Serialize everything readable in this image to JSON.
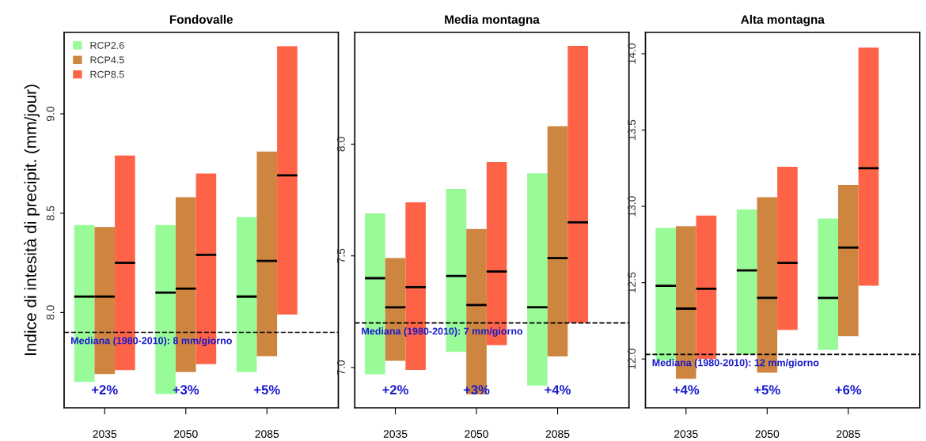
{
  "chart_data": [
    {
      "type": "box",
      "title": "Fondovalle",
      "ylabel": "Indice di intesità di precipit. (mm/jour)",
      "categories": [
        "2035",
        "2050",
        "2085"
      ],
      "ylim": [
        7.52,
        9.41
      ],
      "yticks": [
        {
          "value": 8.0,
          "label": "8.0"
        },
        {
          "value": 8.5,
          "label": "8.5"
        },
        {
          "value": 9.0,
          "label": "9.0"
        }
      ],
      "legend": "top left",
      "series": [
        {
          "name": "RCP2.6",
          "color": "#98fb98",
          "boxes": [
            {
              "low": 7.65,
              "q1": 7.65,
              "median": 8.08,
              "q3": 8.44,
              "high": 8.44
            },
            {
              "low": 7.59,
              "q1": 7.59,
              "median": 8.1,
              "q3": 8.44,
              "high": 8.44
            },
            {
              "low": 7.7,
              "q1": 7.7,
              "median": 8.08,
              "q3": 8.48,
              "high": 8.48
            }
          ]
        },
        {
          "name": "RCP4.5",
          "color": "#cd853f",
          "boxes": [
            {
              "low": 7.69,
              "q1": 7.69,
              "median": 8.08,
              "q3": 8.43,
              "high": 8.43
            },
            {
              "low": 7.7,
              "q1": 7.7,
              "median": 8.12,
              "q3": 8.58,
              "high": 8.58
            },
            {
              "low": 7.78,
              "q1": 7.78,
              "median": 8.26,
              "q3": 8.81,
              "high": 8.81
            }
          ]
        },
        {
          "name": "RCP8.5",
          "color": "#ff6347",
          "boxes": [
            {
              "low": 7.71,
              "q1": 7.71,
              "median": 8.25,
              "q3": 8.79,
              "high": 8.79
            },
            {
              "low": 7.74,
              "q1": 7.74,
              "median": 8.29,
              "q3": 8.7,
              "high": 8.7
            },
            {
              "low": 7.99,
              "q1": 7.99,
              "median": 8.69,
              "q3": 9.34,
              "high": 9.34
            }
          ]
        }
      ],
      "ref_lines": [
        {
          "axis": "y",
          "value": 7.9,
          "label": "Mediana (1980-2010): 8 mm/giorno",
          "color": "#000000",
          "line_style": "dashed"
        }
      ],
      "annotations": [
        "+2%",
        "+3%",
        "+5%"
      ]
    },
    {
      "type": "box",
      "title": "Media montagna",
      "categories": [
        "2035",
        "2050",
        "2085"
      ],
      "ylim": [
        6.82,
        8.5
      ],
      "yticks": [
        {
          "value": 7.0,
          "label": "7.0"
        },
        {
          "value": 7.5,
          "label": "7.5"
        },
        {
          "value": 8.0,
          "label": "8.0"
        }
      ],
      "series": [
        {
          "color": "#98fb98",
          "boxes": [
            {
              "low": 6.97,
              "q1": 6.97,
              "median": 7.4,
              "q3": 7.69,
              "high": 7.69
            },
            {
              "low": 7.07,
              "q1": 7.07,
              "median": 7.41,
              "q3": 7.8,
              "high": 7.8
            },
            {
              "low": 6.92,
              "q1": 6.92,
              "median": 7.27,
              "q3": 7.87,
              "high": 7.87
            }
          ]
        },
        {
          "color": "#cd853f",
          "boxes": [
            {
              "low": 7.03,
              "q1": 7.03,
              "median": 7.27,
              "q3": 7.49,
              "high": 7.49
            },
            {
              "low": 6.88,
              "q1": 6.88,
              "median": 7.28,
              "q3": 7.62,
              "high": 7.62
            },
            {
              "low": 7.05,
              "q1": 7.05,
              "median": 7.49,
              "q3": 8.08,
              "high": 8.08
            }
          ]
        },
        {
          "color": "#ff6347",
          "boxes": [
            {
              "low": 6.99,
              "q1": 6.99,
              "median": 7.36,
              "q3": 7.74,
              "high": 7.74
            },
            {
              "low": 7.1,
              "q1": 7.1,
              "median": 7.43,
              "q3": 7.92,
              "high": 7.92
            },
            {
              "low": 7.2,
              "q1": 7.2,
              "median": 7.65,
              "q3": 8.44,
              "high": 8.44
            }
          ]
        }
      ],
      "ref_lines": [
        {
          "axis": "y",
          "value": 7.2,
          "label": "Mediana (1980-2010): 7 mm/giorno",
          "color": "#000000",
          "line_style": "dashed"
        }
      ],
      "annotations": [
        "+2%",
        "+3%",
        "+4%"
      ]
    },
    {
      "type": "box",
      "title": "Alta montagna",
      "categories": [
        "2035",
        "2050",
        "2085"
      ],
      "ylim": [
        11.68,
        14.14
      ],
      "yticks": [
        {
          "value": 12.0,
          "label": "12.0"
        },
        {
          "value": 12.5,
          "label": "12.5"
        },
        {
          "value": 13.0,
          "label": "13.0"
        },
        {
          "value": 13.5,
          "label": "13.5"
        },
        {
          "value": 14.0,
          "label": "14.0"
        }
      ],
      "series": [
        {
          "color": "#98fb98",
          "boxes": [
            {
              "low": 11.99,
              "q1": 11.99,
              "median": 12.48,
              "q3": 12.86,
              "high": 12.86
            },
            {
              "low": 12.03,
              "q1": 12.03,
              "median": 12.58,
              "q3": 12.98,
              "high": 12.98
            },
            {
              "low": 12.06,
              "q1": 12.06,
              "median": 12.4,
              "q3": 12.92,
              "high": 12.92
            }
          ]
        },
        {
          "color": "#cd853f",
          "boxes": [
            {
              "low": 11.87,
              "q1": 11.87,
              "median": 12.33,
              "q3": 12.87,
              "high": 12.87
            },
            {
              "low": 11.91,
              "q1": 11.91,
              "median": 12.4,
              "q3": 13.06,
              "high": 13.06
            },
            {
              "low": 12.15,
              "q1": 12.15,
              "median": 12.73,
              "q3": 13.14,
              "high": 13.14
            }
          ]
        },
        {
          "color": "#ff6347",
          "boxes": [
            {
              "low": 12.0,
              "q1": 12.0,
              "median": 12.46,
              "q3": 12.94,
              "high": 12.94
            },
            {
              "low": 12.19,
              "q1": 12.19,
              "median": 12.63,
              "q3": 13.26,
              "high": 13.26
            },
            {
              "low": 12.48,
              "q1": 12.48,
              "median": 13.25,
              "q3": 14.04,
              "high": 14.04
            }
          ]
        }
      ],
      "ref_lines": [
        {
          "axis": "y",
          "value": 12.03,
          "label": "Mediana (1980-2010): 12 mm/giorno",
          "color": "#000000",
          "line_style": "dashed"
        }
      ],
      "annotations": [
        "+4%",
        "+5%",
        "+6%"
      ]
    }
  ]
}
